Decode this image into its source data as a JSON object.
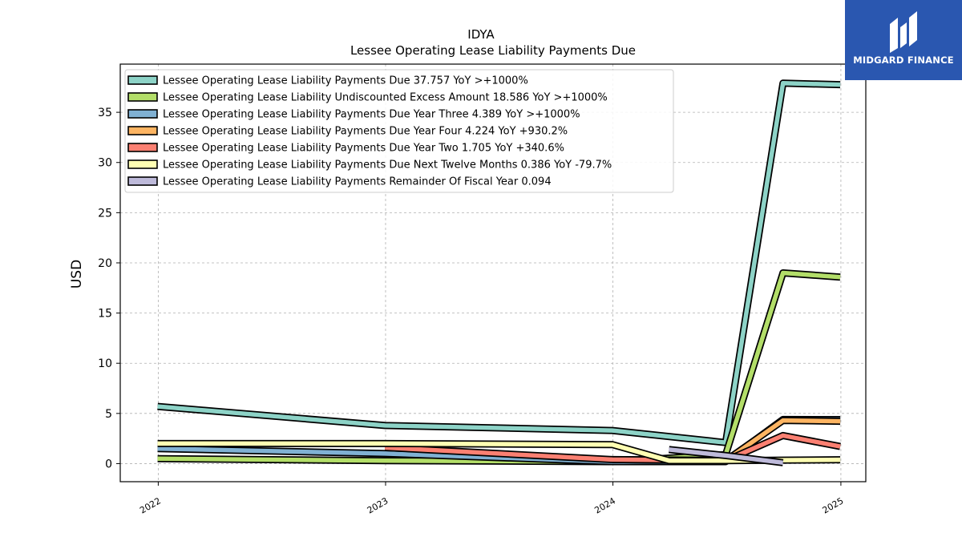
{
  "chart_data": {
    "type": "line",
    "title": "IDYA",
    "subtitle": "Lessee Operating Lease Liability Payments Due",
    "xlabel": "",
    "ylabel": "USD",
    "xlim": [
      "2021-11-01",
      "2025-02-10"
    ],
    "ylim": [
      -1.8,
      39.8
    ],
    "x_ticks": [
      "2022",
      "2023",
      "2024",
      "2025"
    ],
    "y_ticks": [
      0,
      5,
      10,
      15,
      20,
      25,
      30,
      35
    ],
    "grid": true,
    "legend_position": "top-left",
    "series": [
      {
        "name": "Lessee Operating Lease Liability Payments Due",
        "legend": "Lessee Operating Lease Liability Payments Due  37.757 YoY >+1000%",
        "color": "#8dd3c7",
        "points": [
          [
            "2021-12-31",
            5.7
          ],
          [
            "2022-12-31",
            3.8
          ],
          [
            "2023-12-31",
            3.3
          ],
          [
            "2024-06-30",
            2.1
          ],
          [
            "2024-09-30",
            37.9
          ],
          [
            "2024-12-31",
            37.757
          ]
        ]
      },
      {
        "name": "Lessee Operating Lease Liability Undiscounted Excess Amount",
        "legend": "Lessee Operating Lease Liability Undiscounted Excess Amount  18.586 YoY >+1000%",
        "color": "#b3de69",
        "points": [
          [
            "2021-12-31",
            0.5
          ],
          [
            "2022-12-31",
            0.3
          ],
          [
            "2023-12-31",
            0.2
          ],
          [
            "2024-06-30",
            0.9
          ],
          [
            "2024-09-30",
            19.0
          ],
          [
            "2024-12-31",
            18.586
          ]
        ]
      },
      {
        "name": "Lessee Operating Lease Liability Payments Due Year Three",
        "legend": "Lessee Operating Lease Liability Payments Due Year Three  4.389 YoY >+1000%",
        "color": "#80b1d3",
        "points": [
          [
            "2021-12-31",
            1.5
          ],
          [
            "2022-12-31",
            1.0
          ],
          [
            "2023-12-31",
            0.2
          ],
          [
            "2024-06-30",
            0.2
          ],
          [
            "2024-09-30",
            4.4
          ],
          [
            "2024-12-31",
            4.389
          ]
        ]
      },
      {
        "name": "Lessee Operating Lease Liability Payments Due Year Four",
        "legend": "Lessee Operating Lease Liability Payments Due Year Four  4.224 YoY +930.2%",
        "color": "#fdb462",
        "points": [
          [
            "2023-12-31",
            0.4
          ],
          [
            "2024-06-30",
            0.3
          ],
          [
            "2024-09-30",
            4.3
          ],
          [
            "2024-12-31",
            4.224
          ]
        ]
      },
      {
        "name": "Lessee Operating Lease Liability Payments Due Year Two",
        "legend": "Lessee Operating Lease Liability Payments Due Year Two  1.705 YoY +340.6%",
        "color": "#fb8072",
        "points": [
          [
            "2022-12-31",
            1.6
          ],
          [
            "2023-12-31",
            0.4
          ],
          [
            "2024-06-30",
            0.3
          ],
          [
            "2024-09-30",
            2.8
          ],
          [
            "2024-12-31",
            1.705
          ]
        ]
      },
      {
        "name": "Lessee Operating Lease Liability Payments Due Next Twelve Months",
        "legend": "Lessee Operating Lease Liability Payments Due Next Twelve Months  0.386 YoY -79.7%",
        "color": "#ffffb3",
        "points": [
          [
            "2021-12-31",
            2.0
          ],
          [
            "2022-12-31",
            2.0
          ],
          [
            "2023-12-31",
            1.9
          ],
          [
            "2024-03-31",
            0.3
          ],
          [
            "2024-06-30",
            0.3
          ],
          [
            "2024-09-30",
            0.35
          ],
          [
            "2024-12-31",
            0.386
          ]
        ]
      },
      {
        "name": "Lessee Operating Lease Liability Payments Remainder Of Fiscal Year",
        "legend": "Lessee Operating Lease Liability Payments Remainder Of Fiscal Year  0.094",
        "color": "#bebada",
        "points": [
          [
            "2024-03-31",
            1.4
          ],
          [
            "2024-06-30",
            0.8
          ],
          [
            "2024-09-30",
            0.094
          ]
        ]
      }
    ]
  },
  "logo": {
    "text": "MIDGARD FINANCE",
    "color": "#2a57b0"
  }
}
